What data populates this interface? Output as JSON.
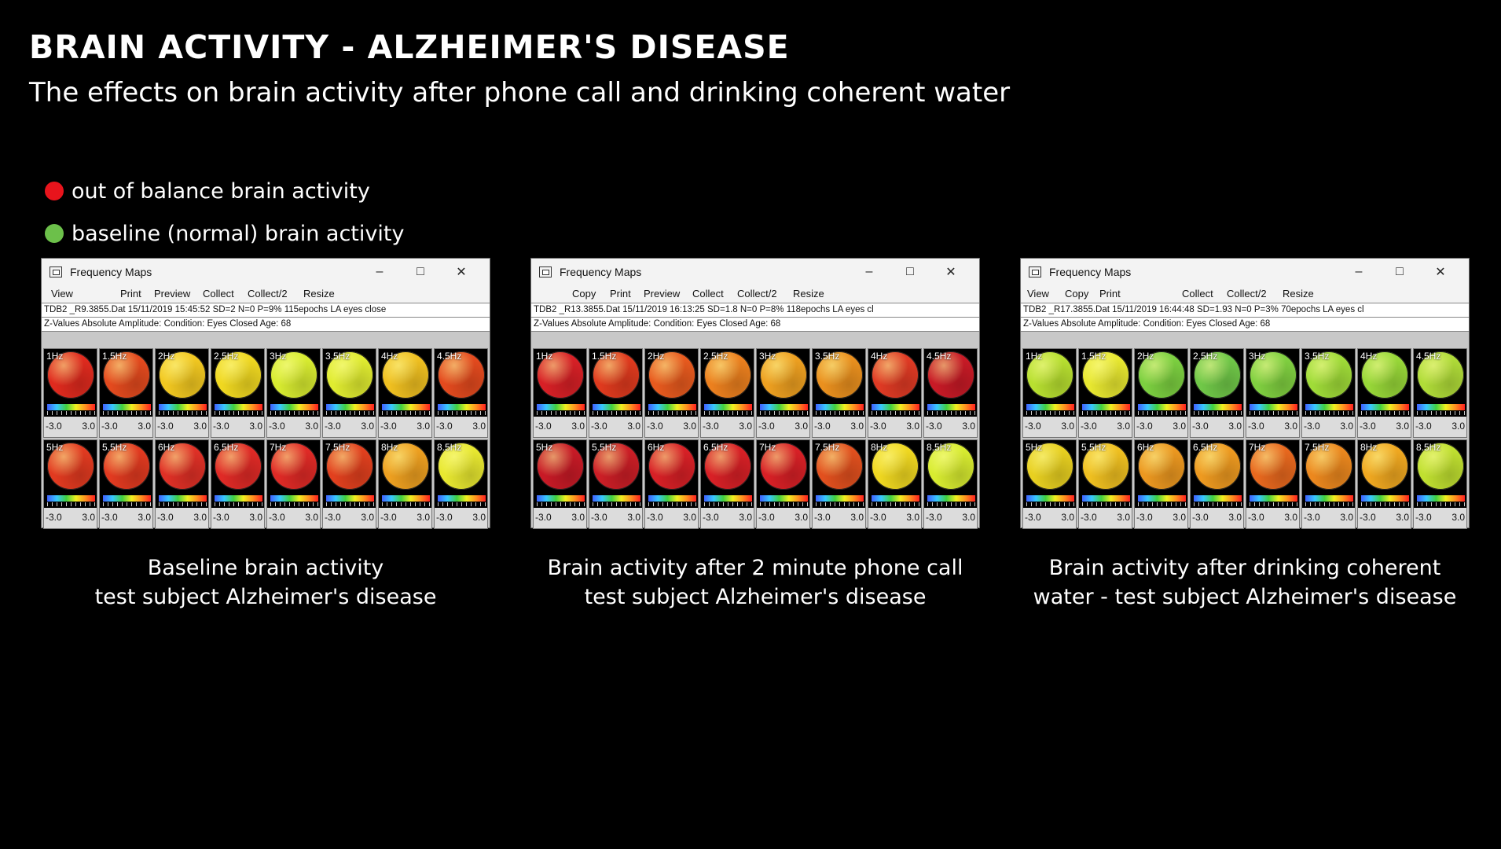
{
  "title": "BRAIN ACTIVITY - ALZHEIMER'S DISEASE",
  "subtitle": "The effects on brain activity after phone call and drinking coherent water",
  "legend": [
    {
      "label": "out of balance brain activity",
      "color": "#e8141c"
    },
    {
      "label": "baseline (normal) brain activity",
      "color": "#6cc04a"
    }
  ],
  "scale": {
    "min": "-3.0",
    "max": "3.0"
  },
  "panels": [
    {
      "window_title": "Frequency Maps",
      "menu": [
        "View",
        "Print",
        "Preview",
        "Collect",
        "Collect/2",
        "Resize"
      ],
      "info_line": "TDB2            _R9.3855.Dat   15/11/2019 15:45:52 SD=2 N=0 P=9% 115epochs LA    eyes close",
      "info_line2": "Z-Values Absolute Amplitude:     Condition: Eyes Closed  Age:  68",
      "caption_line1": "Baseline brain activity",
      "caption_line2": "test subject Alzheimer's disease",
      "maps": [
        {
          "freq": "1Hz",
          "c": "#e02a1e"
        },
        {
          "freq": "1.5Hz",
          "c": "#e44a1e"
        },
        {
          "freq": "2Hz",
          "c": "#f2c820"
        },
        {
          "freq": "2.5Hz",
          "c": "#f0d820"
        },
        {
          "freq": "3Hz",
          "c": "#d8ec30"
        },
        {
          "freq": "3.5Hz",
          "c": "#e0ec30"
        },
        {
          "freq": "4Hz",
          "c": "#f0c020"
        },
        {
          "freq": "4.5Hz",
          "c": "#e44a1e"
        },
        {
          "freq": "5Hz",
          "c": "#e23a20"
        },
        {
          "freq": "5.5Hz",
          "c": "#e23a20"
        },
        {
          "freq": "6Hz",
          "c": "#e03026"
        },
        {
          "freq": "6.5Hz",
          "c": "#e02a26"
        },
        {
          "freq": "7Hz",
          "c": "#e02a26"
        },
        {
          "freq": "7.5Hz",
          "c": "#e2401e"
        },
        {
          "freq": "8Hz",
          "c": "#eea020"
        },
        {
          "freq": "8.5Hz",
          "c": "#e8e830"
        }
      ]
    },
    {
      "window_title": "Frequency Maps",
      "menu": [
        "Copy",
        "Print",
        "Preview",
        "Collect",
        "Collect/2",
        "Resize"
      ],
      "info_line": "TDB2          _R13.3855.Dat   15/11/2019 16:13:25 SD=1.8 N=0 P=8% 118epochs LA    eyes cl",
      "info_line2": "Z-Values Absolute Amplitude:     Condition: Eyes Closed  Age:  68",
      "caption_line1": "Brain activity after 2 minute phone call",
      "caption_line2": "test subject Alzheimer's disease",
      "maps": [
        {
          "freq": "1Hz",
          "c": "#d82026"
        },
        {
          "freq": "1.5Hz",
          "c": "#e03a1e"
        },
        {
          "freq": "2Hz",
          "c": "#e85a1e"
        },
        {
          "freq": "2.5Hz",
          "c": "#ec801e"
        },
        {
          "freq": "3Hz",
          "c": "#eea020"
        },
        {
          "freq": "3.5Hz",
          "c": "#ea901e"
        },
        {
          "freq": "4Hz",
          "c": "#e03a24"
        },
        {
          "freq": "4.5Hz",
          "c": "#c81a26"
        },
        {
          "freq": "5Hz",
          "c": "#c81a26"
        },
        {
          "freq": "5.5Hz",
          "c": "#cc1e26"
        },
        {
          "freq": "6Hz",
          "c": "#d82026"
        },
        {
          "freq": "6.5Hz",
          "c": "#d82026"
        },
        {
          "freq": "7Hz",
          "c": "#d82026"
        },
        {
          "freq": "7.5Hz",
          "c": "#e2501e"
        },
        {
          "freq": "8Hz",
          "c": "#f0d820"
        },
        {
          "freq": "8.5Hz",
          "c": "#d8ec30"
        }
      ]
    },
    {
      "window_title": "Frequency Maps",
      "menu": [
        "View",
        "Copy",
        "Print",
        "Collect",
        "Collect/2",
        "Resize"
      ],
      "info_line": "TDB2            _R17.3855.Dat   15/11/2019 16:44:48 SD=1.93 N=0 P=3% 70epochs LA    eyes cl",
      "info_line2": "Z-Values Absolute Amplitude:     Condition: Eyes Closed  Age:  68",
      "caption_line1": "Brain activity after drinking coherent",
      "caption_line2": "water - test subject Alzheimer's disease",
      "maps": [
        {
          "freq": "1Hz",
          "c": "#b8e030"
        },
        {
          "freq": "1.5Hz",
          "c": "#e8e830"
        },
        {
          "freq": "2Hz",
          "c": "#7cd040"
        },
        {
          "freq": "2.5Hz",
          "c": "#70c848"
        },
        {
          "freq": "3Hz",
          "c": "#80d040"
        },
        {
          "freq": "3.5Hz",
          "c": "#a0dc38"
        },
        {
          "freq": "4Hz",
          "c": "#98d838"
        },
        {
          "freq": "4.5Hz",
          "c": "#b0dc38"
        },
        {
          "freq": "5Hz",
          "c": "#e8d020"
        },
        {
          "freq": "5.5Hz",
          "c": "#f0c020"
        },
        {
          "freq": "6Hz",
          "c": "#ec9820"
        },
        {
          "freq": "6.5Hz",
          "c": "#ee9a20"
        },
        {
          "freq": "7Hz",
          "c": "#e8681e"
        },
        {
          "freq": "7.5Hz",
          "c": "#ec881e"
        },
        {
          "freq": "8Hz",
          "c": "#f0a820"
        },
        {
          "freq": "8.5Hz",
          "c": "#c0e030"
        }
      ]
    }
  ]
}
